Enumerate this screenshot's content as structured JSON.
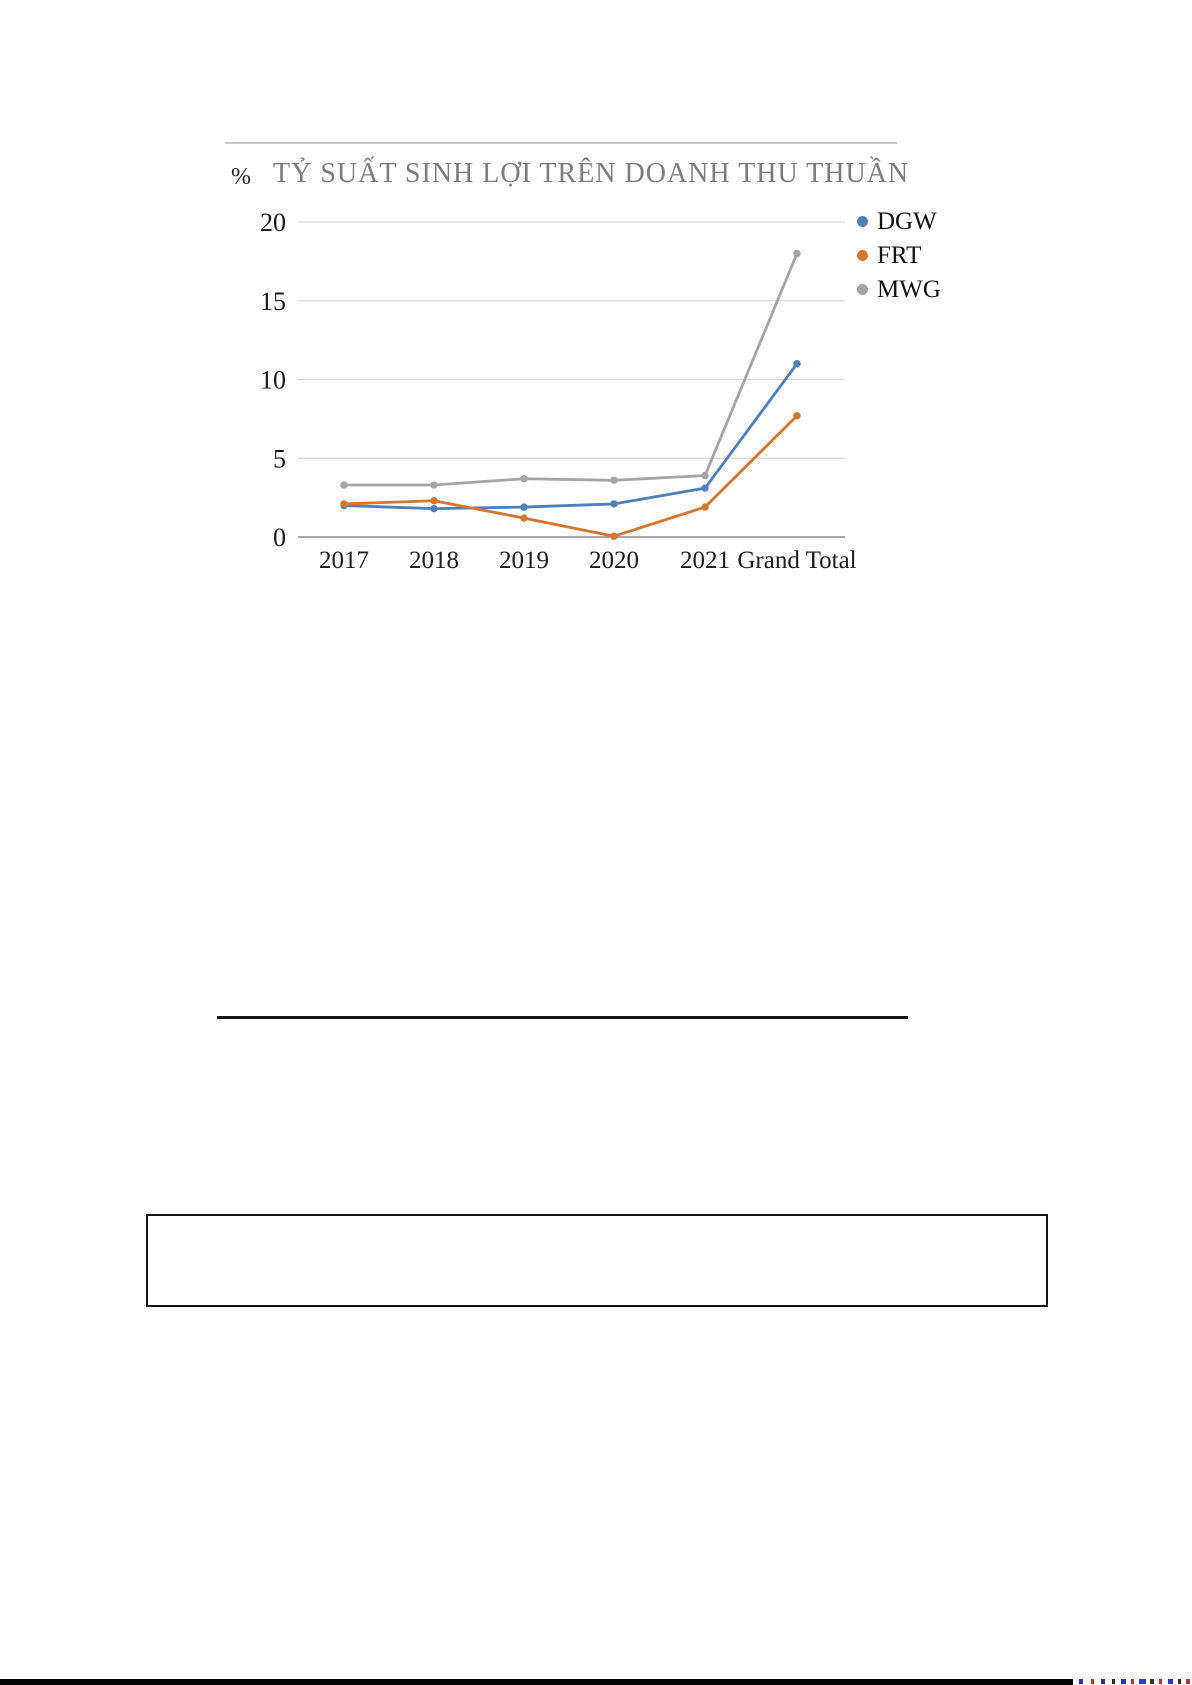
{
  "chart_data": {
    "type": "line",
    "title": "TỶ SUẤT SINH LỢI TRÊN DOANH THU THUẦN",
    "unit_label": "%",
    "categories": [
      "2017",
      "2018",
      "2019",
      "2020",
      "2021",
      "Grand Total"
    ],
    "series": [
      {
        "name": "DGW",
        "color": "#4e80bc",
        "values": [
          2.0,
          1.8,
          1.9,
          2.1,
          3.1,
          11.0
        ]
      },
      {
        "name": "FRT",
        "color": "#d6752e",
        "values": [
          2.1,
          2.3,
          1.2,
          0.05,
          1.9,
          7.7
        ]
      },
      {
        "name": "MWG",
        "color": "#a5a5a5",
        "values": [
          3.3,
          3.3,
          3.7,
          3.6,
          3.9,
          18.0
        ]
      }
    ],
    "y_ticks": [
      0,
      5,
      10,
      15,
      20
    ],
    "ylim": [
      0,
      20
    ],
    "grid": true,
    "legend_position": "right",
    "colors": {
      "gridline": "#d9d9d9",
      "axis_line": "#9a9a9a",
      "tick_text": "#1c1c1c",
      "title_text": "#7d7d7d"
    }
  },
  "decor": {
    "bottom_fragments": [
      {
        "x": 1079,
        "w": 4,
        "color": "#2a35c8"
      },
      {
        "x": 1091,
        "w": 3,
        "color": "#c03030"
      },
      {
        "x": 1101,
        "w": 4,
        "color": "#30309a"
      },
      {
        "x": 1112,
        "w": 3,
        "color": "#303030"
      },
      {
        "x": 1121,
        "w": 5,
        "color": "#2a35c8"
      },
      {
        "x": 1131,
        "w": 3,
        "color": "#c03030"
      },
      {
        "x": 1139,
        "w": 7,
        "color": "#2a40d0"
      },
      {
        "x": 1150,
        "w": 4,
        "color": "#303030"
      },
      {
        "x": 1159,
        "w": 3,
        "color": "#c03030"
      },
      {
        "x": 1168,
        "w": 5,
        "color": "#2a35c8"
      },
      {
        "x": 1178,
        "w": 3,
        "color": "#303030"
      },
      {
        "x": 1186,
        "w": 4,
        "color": "#c03030"
      }
    ]
  }
}
